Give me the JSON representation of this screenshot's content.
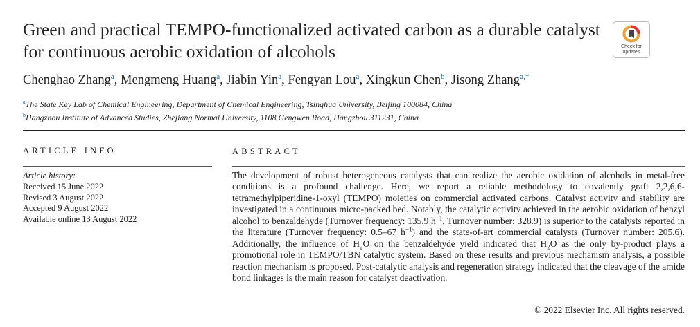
{
  "header": {
    "title": "Green and practical TEMPO-functionalized activated carbon as a durable catalyst for continuous aerobic oxidation of alcohols",
    "badge": "Check for updates",
    "authors": [
      "Chenghao Zhang",
      {
        "sup": "a"
      },
      ", Mengmeng Huang",
      {
        "sup": "a"
      },
      ", Jiabin Yin",
      {
        "sup": "a"
      },
      ", Fengyan Lou",
      {
        "sup": "a"
      },
      ", Xingkun Chen",
      {
        "sup": "b"
      },
      ", Jisong Zhang",
      {
        "sup": "a,*"
      }
    ],
    "affiliations": [
      [
        {
          "sup": "a"
        },
        "The State Key Lab of Chemical Engineering, Department of Chemical Engineering, Tsinghua University, Beijing 100084, China"
      ],
      [
        {
          "sup": "b"
        },
        "Hangzhou Institute of Advanced Studies, Zhejiang Normal University, 1108 Gengwen Road, Hangzhou 311231, China"
      ]
    ]
  },
  "article_info": {
    "heading": "ARTICLE INFO",
    "history_label": "Article history:",
    "history": [
      "Received 15 June 2022",
      "Revised 3 August 2022",
      "Accepted 9 August 2022",
      "Available online 13 August 2022"
    ]
  },
  "abstract": {
    "heading": "ABSTRACT",
    "text": [
      "The development of robust heterogeneous catalysts that can realize the aerobic oxidation of alcohols in metal-free conditions is a profound challenge. Here, we report a reliable methodology to covalently graft 2,2,6,6-tetramethylpiperidine-1-oxyl (TEMPO) moieties on commercial activated carbons. Catalyst activity and stability are investigated in a continuous micro-packed bed. Notably, the catalytic activity achieved in the aerobic oxidation of benzyl alcohol to benzaldehyde (Turnover frequency: 135.9 h",
      {
        "sup": "−1"
      },
      ", Turnover number: 328.9) is superior to the catalysts reported in the literature (Turnover frequency: 0.5–67 h",
      {
        "sup": "−1"
      },
      ") and the state-of-art commercial catalysts (Turnover number: 205.6). Additionally, the influence of H",
      {
        "sub": "2"
      },
      "O on the benzaldehyde yield indicated that H",
      {
        "sub": "2"
      },
      "O as the only by-product plays a promotional role in TEMPO/TBN catalytic system. Based on these results and previous mechanism analysis, a possible reaction mechanism is proposed. Post-catalytic analysis and regeneration strategy indicated that the cleavage of the amide bond linkages is the main reason for catalyst deactivation."
    ],
    "copyright": "© 2022 Elsevier Inc. All rights reserved."
  }
}
